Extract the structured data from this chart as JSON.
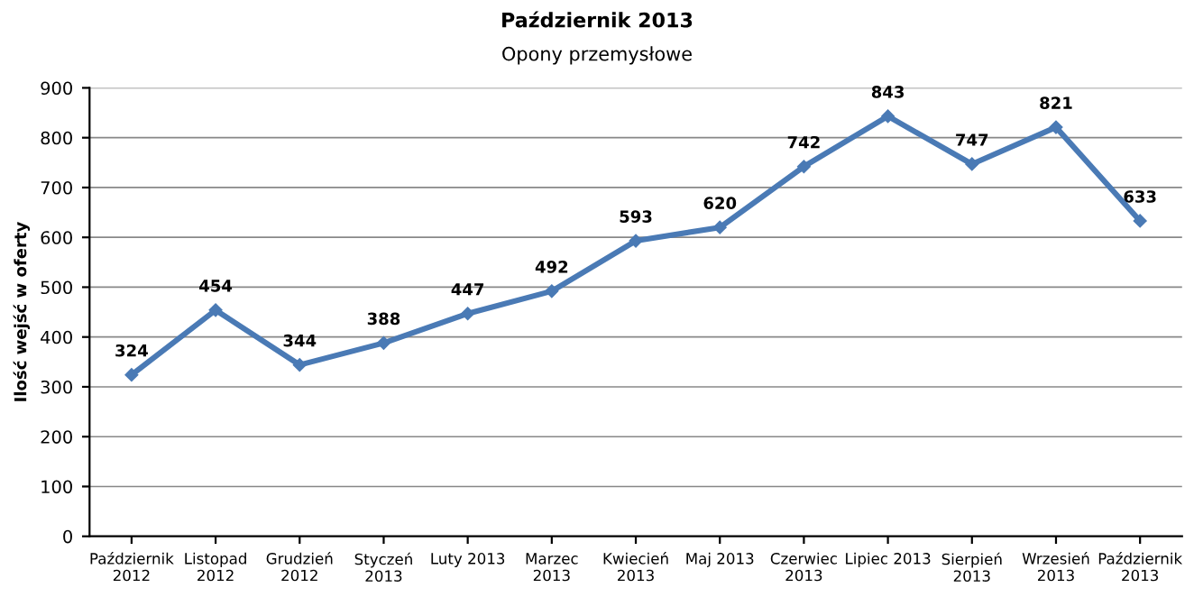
{
  "chart_data": {
    "type": "line",
    "title": "Październik 2013",
    "subtitle": "Opony przemysłowe",
    "ylabel": "Ilość wejść w oferty",
    "categories": [
      "Październik\n2012",
      "Listopad\n2012",
      "Grudzień\n2012",
      "Styczeń\n2013",
      "Luty 2013",
      "Marzec\n2013",
      "Kwiecień\n2013",
      "Maj 2013",
      "Czerwiec\n2013",
      "Lipiec 2013",
      "Sierpień\n2013",
      "Wrzesień\n2013",
      "Październik\n2013"
    ],
    "series": [
      {
        "color": "#4a7ab5",
        "values": [
          324,
          454,
          344,
          388,
          447,
          492,
          593,
          620,
          742,
          843,
          747,
          821,
          633
        ]
      }
    ],
    "ylim": [
      0,
      900
    ],
    "yticks": [
      0,
      100,
      200,
      300,
      400,
      500,
      600,
      700,
      800,
      900
    ],
    "grid": "y",
    "data_labels": true,
    "marker": "diamond",
    "line_style": "solid",
    "legend": false
  }
}
